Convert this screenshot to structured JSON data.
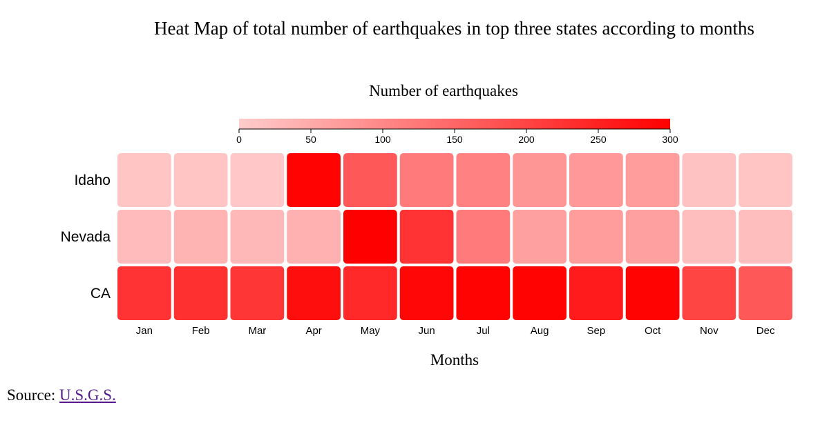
{
  "chart_data": {
    "type": "heatmap",
    "title": "Heat Map of total number of earthquakes in top three states according to months",
    "legend_title": "Number of earthquakes",
    "legend_ticks": [
      0,
      50,
      100,
      150,
      200,
      250,
      300
    ],
    "color_range": [
      0,
      300
    ],
    "color_low": "#ffcccc",
    "color_high": "#ff0000",
    "xlabel": "Months",
    "ylabel": "",
    "rows": [
      "Idaho",
      "Nevada",
      "CA"
    ],
    "columns": [
      "Jan",
      "Feb",
      "Mar",
      "Apr",
      "May",
      "Jun",
      "Jul",
      "Aug",
      "Sep",
      "Oct",
      "Nov",
      "Dec"
    ],
    "values": [
      [
        10,
        12,
        8,
        295,
        170,
        120,
        110,
        80,
        75,
        70,
        15,
        10
      ],
      [
        25,
        35,
        30,
        40,
        300,
        225,
        120,
        65,
        70,
        65,
        20,
        20
      ],
      [
        225,
        230,
        220,
        280,
        240,
        290,
        295,
        295,
        260,
        295,
        200,
        170
      ]
    ]
  },
  "source": {
    "label": "Source: ",
    "link_text": "U.S.G.S."
  }
}
